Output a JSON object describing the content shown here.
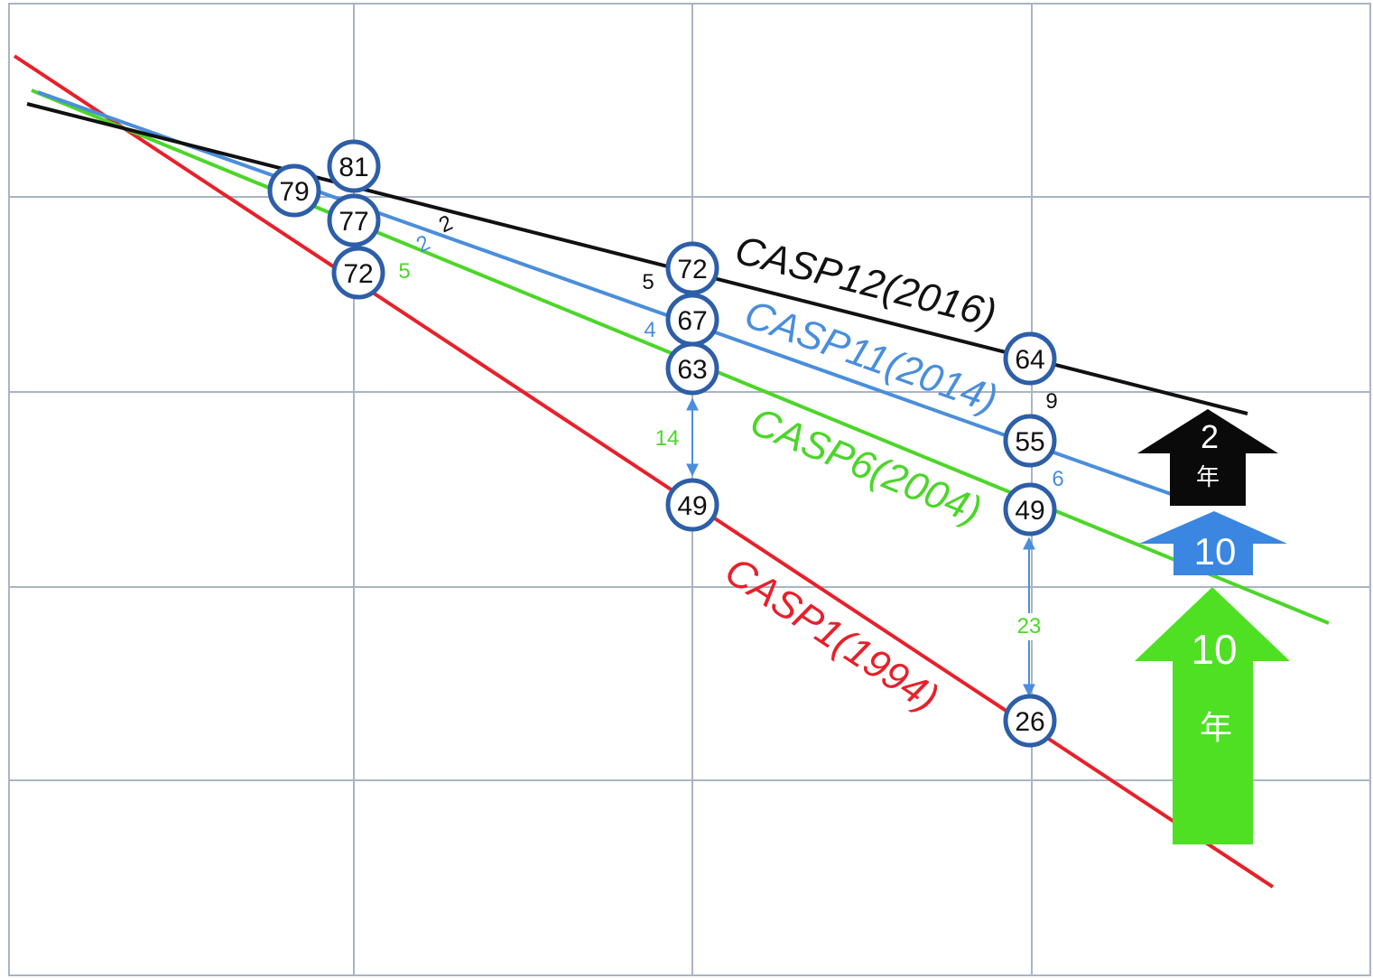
{
  "chart_data": {
    "type": "line",
    "grid": true,
    "series": [
      {
        "name": "CASP1(1994)",
        "color": "#e8202a"
      },
      {
        "name": "CASP6(2004)",
        "color": "#4cd628"
      },
      {
        "name": "CASP11(2014)",
        "color": "#4a8edc"
      },
      {
        "name": "CASP12(2016)",
        "color": "#111111"
      }
    ],
    "columns": [
      {
        "values": [
          {
            "series": "CASP12(2016)",
            "value": "81"
          },
          {
            "series": "CASP11(2014)",
            "value": "79"
          },
          {
            "series": "CASP6(2004)",
            "value": "77"
          },
          {
            "series": "CASP1(1994)",
            "value": "72"
          }
        ]
      },
      {
        "values": [
          {
            "series": "CASP12(2016)",
            "value": "72"
          },
          {
            "series": "CASP11(2014)",
            "value": "67"
          },
          {
            "series": "CASP6(2004)",
            "value": "63"
          },
          {
            "series": "CASP1(1994)",
            "value": "49"
          }
        ]
      },
      {
        "values": [
          {
            "series": "CASP12(2016)",
            "value": "64"
          },
          {
            "series": "CASP11(2014)",
            "value": "55"
          },
          {
            "series": "CASP6(2004)",
            "value": "49"
          },
          {
            "series": "CASP1(1994)",
            "value": "26"
          }
        ]
      }
    ],
    "differences": [
      {
        "value": "2",
        "color": "#111111"
      },
      {
        "value": "2",
        "color": "#4a8edc"
      },
      {
        "value": "5",
        "color": "#4cd628"
      },
      {
        "value": "5",
        "color": "#111111"
      },
      {
        "value": "4",
        "color": "#4a8edc"
      },
      {
        "value": "9",
        "color": "#111111"
      },
      {
        "value": "6",
        "color": "#4a8edc"
      }
    ],
    "gaps": [
      {
        "value": "14",
        "color": "#4cd628"
      },
      {
        "value": "23",
        "color": "#4cd628"
      }
    ],
    "arrows": [
      {
        "number": "2",
        "unit": "年",
        "color": "#0a0a0a"
      },
      {
        "number": "10",
        "unit": "",
        "color": "#3a86e0"
      },
      {
        "number": "10",
        "unit": "年",
        "color": "#4fe024"
      }
    ]
  }
}
